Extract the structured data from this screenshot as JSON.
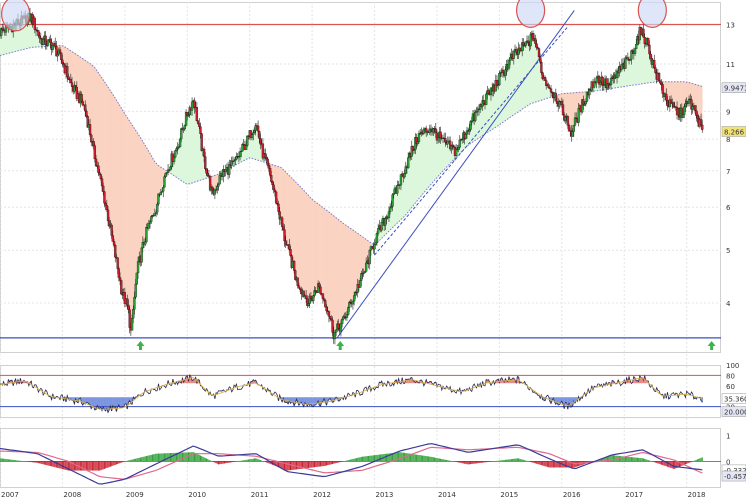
{
  "chart_data": {
    "type": "candlestick",
    "title": "",
    "xlabel": "",
    "ylabel": "",
    "scale": "log",
    "x_ticks": [
      "2007",
      "2008",
      "2009",
      "2010",
      "2011",
      "2012",
      "2013",
      "2014",
      "2015",
      "2016",
      "2017",
      "2018"
    ],
    "price_ticks": [
      "13",
      "11",
      "9",
      "8",
      "7",
      "6",
      "5",
      "4"
    ],
    "price_ylim": [
      3.25,
      14.3
    ],
    "price_series": [
      {
        "date": 2007.0,
        "close": 12.6
      },
      {
        "date": 2007.3,
        "close": 13.1
      },
      {
        "date": 2007.5,
        "close": 13.4
      },
      {
        "date": 2007.65,
        "close": 12.2
      },
      {
        "date": 2007.85,
        "close": 11.9
      },
      {
        "date": 2008.0,
        "close": 11.1
      },
      {
        "date": 2008.15,
        "close": 10.0
      },
      {
        "date": 2008.35,
        "close": 9.2
      },
      {
        "date": 2008.5,
        "close": 7.6
      },
      {
        "date": 2008.65,
        "close": 6.4
      },
      {
        "date": 2008.8,
        "close": 5.2
      },
      {
        "date": 2008.95,
        "close": 4.2
      },
      {
        "date": 2009.05,
        "close": 3.9
      },
      {
        "date": 2009.1,
        "close": 3.5
      },
      {
        "date": 2009.2,
        "close": 4.6
      },
      {
        "date": 2009.35,
        "close": 5.4
      },
      {
        "date": 2009.5,
        "close": 6.0
      },
      {
        "date": 2009.65,
        "close": 6.9
      },
      {
        "date": 2009.85,
        "close": 7.8
      },
      {
        "date": 2010.0,
        "close": 8.9
      },
      {
        "date": 2010.1,
        "close": 9.5
      },
      {
        "date": 2010.25,
        "close": 7.5
      },
      {
        "date": 2010.4,
        "close": 6.3
      },
      {
        "date": 2010.55,
        "close": 6.9
      },
      {
        "date": 2010.75,
        "close": 7.2
      },
      {
        "date": 2010.95,
        "close": 7.9
      },
      {
        "date": 2011.1,
        "close": 8.6
      },
      {
        "date": 2011.2,
        "close": 7.6
      },
      {
        "date": 2011.35,
        "close": 6.7
      },
      {
        "date": 2011.55,
        "close": 5.3
      },
      {
        "date": 2011.75,
        "close": 4.4
      },
      {
        "date": 2011.95,
        "close": 4.0
      },
      {
        "date": 2012.1,
        "close": 4.3
      },
      {
        "date": 2012.25,
        "close": 3.9
      },
      {
        "date": 2012.35,
        "close": 3.5
      },
      {
        "date": 2012.5,
        "close": 3.7
      },
      {
        "date": 2012.7,
        "close": 4.2
      },
      {
        "date": 2012.85,
        "close": 4.6
      },
      {
        "date": 2013.0,
        "close": 5.2
      },
      {
        "date": 2013.2,
        "close": 5.8
      },
      {
        "date": 2013.45,
        "close": 6.9
      },
      {
        "date": 2013.7,
        "close": 8.1
      },
      {
        "date": 2013.9,
        "close": 8.4
      },
      {
        "date": 2014.1,
        "close": 7.9
      },
      {
        "date": 2014.3,
        "close": 7.6
      },
      {
        "date": 2014.55,
        "close": 8.6
      },
      {
        "date": 2014.75,
        "close": 9.4
      },
      {
        "date": 2014.95,
        "close": 10.1
      },
      {
        "date": 2015.2,
        "close": 11.3
      },
      {
        "date": 2015.45,
        "close": 12.0
      },
      {
        "date": 2015.55,
        "close": 12.4
      },
      {
        "date": 2015.7,
        "close": 10.4
      },
      {
        "date": 2015.9,
        "close": 9.6
      },
      {
        "date": 2016.05,
        "close": 8.8
      },
      {
        "date": 2016.15,
        "close": 8.2
      },
      {
        "date": 2016.35,
        "close": 9.4
      },
      {
        "date": 2016.55,
        "close": 10.4
      },
      {
        "date": 2016.75,
        "close": 10.0
      },
      {
        "date": 2016.95,
        "close": 10.8
      },
      {
        "date": 2017.1,
        "close": 11.3
      },
      {
        "date": 2017.25,
        "close": 12.6
      },
      {
        "date": 2017.35,
        "close": 12.2
      },
      {
        "date": 2017.5,
        "close": 10.6
      },
      {
        "date": 2017.7,
        "close": 9.3
      },
      {
        "date": 2017.9,
        "close": 8.9
      },
      {
        "date": 2018.05,
        "close": 9.4
      },
      {
        "date": 2018.2,
        "close": 8.6
      },
      {
        "date": 2018.25,
        "close": 8.27
      }
    ],
    "moving_average": [
      {
        "date": 2007.0,
        "value": 11.4
      },
      {
        "date": 2007.5,
        "value": 11.8
      },
      {
        "date": 2008.0,
        "value": 11.9
      },
      {
        "date": 2008.5,
        "value": 10.9
      },
      {
        "date": 2009.0,
        "value": 8.9
      },
      {
        "date": 2009.5,
        "value": 7.2
      },
      {
        "date": 2010.0,
        "value": 6.6
      },
      {
        "date": 2010.5,
        "value": 6.9
      },
      {
        "date": 2011.0,
        "value": 7.4
      },
      {
        "date": 2011.5,
        "value": 7.1
      },
      {
        "date": 2012.0,
        "value": 6.2
      },
      {
        "date": 2012.5,
        "value": 5.6
      },
      {
        "date": 2013.0,
        "value": 5.1
      },
      {
        "date": 2013.5,
        "value": 5.8
      },
      {
        "date": 2014.0,
        "value": 6.8
      },
      {
        "date": 2014.5,
        "value": 7.8
      },
      {
        "date": 2015.0,
        "value": 8.5
      },
      {
        "date": 2015.5,
        "value": 9.3
      },
      {
        "date": 2016.0,
        "value": 9.7
      },
      {
        "date": 2016.5,
        "value": 9.8
      },
      {
        "date": 2017.0,
        "value": 10.0
      },
      {
        "date": 2017.5,
        "value": 10.2
      },
      {
        "date": 2018.0,
        "value": 10.2
      },
      {
        "date": 2018.25,
        "value": 10.0
      }
    ],
    "resistance_level": 13.0,
    "support_level": 3.45,
    "trendlines": [
      {
        "x0": 2012.4,
        "y0": 3.45,
        "x1": 2016.2,
        "y1": 13.8
      },
      {
        "x0": 2013.0,
        "y0": 4.9,
        "x1": 2016.1,
        "y1": 12.9
      }
    ],
    "circle_marks": [
      {
        "date": 2007.25,
        "value": 13.6
      },
      {
        "date": 2015.5,
        "value": 13.8
      },
      {
        "date": 2017.45,
        "value": 13.8
      }
    ],
    "buy_arrows": [
      2009.25,
      2012.45,
      2018.4
    ],
    "last_price_label": "8.266",
    "ma_value_label": "9.9471",
    "oscillator": {
      "ticks": [
        "100",
        "80",
        "60",
        "20"
      ],
      "levels": [
        80,
        20
      ],
      "ylim": [
        0,
        100
      ],
      "label": "35.360",
      "label_value": 35.36,
      "label2": "20.0000",
      "label2_value": 20.0,
      "series": [
        {
          "date": 2007.0,
          "value": 62
        },
        {
          "date": 2007.4,
          "value": 70
        },
        {
          "date": 2007.8,
          "value": 40
        },
        {
          "date": 2008.3,
          "value": 30
        },
        {
          "date": 2008.6,
          "value": 14
        },
        {
          "date": 2009.0,
          "value": 18
        },
        {
          "date": 2009.3,
          "value": 48
        },
        {
          "date": 2009.7,
          "value": 64
        },
        {
          "date": 2010.1,
          "value": 76
        },
        {
          "date": 2010.4,
          "value": 40
        },
        {
          "date": 2010.8,
          "value": 58
        },
        {
          "date": 2011.1,
          "value": 66
        },
        {
          "date": 2011.5,
          "value": 34
        },
        {
          "date": 2011.9,
          "value": 24
        },
        {
          "date": 2012.3,
          "value": 30
        },
        {
          "date": 2012.7,
          "value": 44
        },
        {
          "date": 2013.1,
          "value": 62
        },
        {
          "date": 2013.6,
          "value": 72
        },
        {
          "date": 2014.0,
          "value": 60
        },
        {
          "date": 2014.4,
          "value": 48
        },
        {
          "date": 2014.8,
          "value": 66
        },
        {
          "date": 2015.3,
          "value": 72
        },
        {
          "date": 2015.7,
          "value": 38
        },
        {
          "date": 2016.1,
          "value": 20
        },
        {
          "date": 2016.5,
          "value": 56
        },
        {
          "date": 2016.9,
          "value": 66
        },
        {
          "date": 2017.3,
          "value": 76
        },
        {
          "date": 2017.6,
          "value": 40
        },
        {
          "date": 2018.0,
          "value": 44
        },
        {
          "date": 2018.25,
          "value": 35
        }
      ]
    },
    "macd": {
      "ticks": [
        "1",
        "0"
      ],
      "ylim": [
        -1.0,
        1.3
      ],
      "label": "-0.3327",
      "label_value": -0.3327,
      "label2": "-0.4571",
      "label2_value": -0.4571,
      "line": [
        {
          "date": 2007.0,
          "value": 0.5
        },
        {
          "date": 2007.6,
          "value": 0.3
        },
        {
          "date": 2008.1,
          "value": -0.3
        },
        {
          "date": 2008.6,
          "value": -0.9
        },
        {
          "date": 2009.0,
          "value": -0.7
        },
        {
          "date": 2009.5,
          "value": -0.1
        },
        {
          "date": 2010.1,
          "value": 0.6
        },
        {
          "date": 2010.5,
          "value": 0.2
        },
        {
          "date": 2011.1,
          "value": 0.3
        },
        {
          "date": 2011.6,
          "value": -0.4
        },
        {
          "date": 2012.2,
          "value": -0.6
        },
        {
          "date": 2012.8,
          "value": -0.2
        },
        {
          "date": 2013.4,
          "value": 0.4
        },
        {
          "date": 2013.9,
          "value": 0.7
        },
        {
          "date": 2014.5,
          "value": 0.35
        },
        {
          "date": 2015.3,
          "value": 0.65
        },
        {
          "date": 2015.8,
          "value": 0.1
        },
        {
          "date": 2016.2,
          "value": -0.3
        },
        {
          "date": 2016.8,
          "value": 0.25
        },
        {
          "date": 2017.3,
          "value": 0.45
        },
        {
          "date": 2017.8,
          "value": -0.2
        },
        {
          "date": 2018.25,
          "value": -0.33
        }
      ],
      "signal": [
        {
          "date": 2007.0,
          "value": 0.4
        },
        {
          "date": 2007.6,
          "value": 0.35
        },
        {
          "date": 2008.1,
          "value": 0.0
        },
        {
          "date": 2008.6,
          "value": -0.6
        },
        {
          "date": 2009.0,
          "value": -0.7
        },
        {
          "date": 2009.5,
          "value": -0.35
        },
        {
          "date": 2010.1,
          "value": 0.3
        },
        {
          "date": 2010.5,
          "value": 0.3
        },
        {
          "date": 2011.1,
          "value": 0.2
        },
        {
          "date": 2011.6,
          "value": -0.1
        },
        {
          "date": 2012.2,
          "value": -0.45
        },
        {
          "date": 2012.8,
          "value": -0.35
        },
        {
          "date": 2013.4,
          "value": 0.1
        },
        {
          "date": 2013.9,
          "value": 0.55
        },
        {
          "date": 2014.5,
          "value": 0.45
        },
        {
          "date": 2015.3,
          "value": 0.55
        },
        {
          "date": 2015.8,
          "value": 0.3
        },
        {
          "date": 2016.2,
          "value": -0.1
        },
        {
          "date": 2016.8,
          "value": 0.05
        },
        {
          "date": 2017.3,
          "value": 0.35
        },
        {
          "date": 2017.8,
          "value": 0.05
        },
        {
          "date": 2018.25,
          "value": -0.46
        }
      ]
    },
    "colors": {
      "up": "#2e9e36",
      "down": "#c8202f",
      "ma_above_fill": "#dcf7dc",
      "ma_below_fill": "#fbd3c2",
      "resistance": "#d9534f",
      "support": "#3b4fc0",
      "trendline": "#3b4fc0",
      "circle_stroke": "#d9534f",
      "circle_fill": "#cfd8f6",
      "arrow": "#3bb34a",
      "osc_fill_high": "#e88a8a",
      "osc_fill_low": "#7b95e0",
      "price_label_bg": "#f2e27a",
      "ma_label_bg": "#e4e6f5"
    },
    "grid": true
  }
}
